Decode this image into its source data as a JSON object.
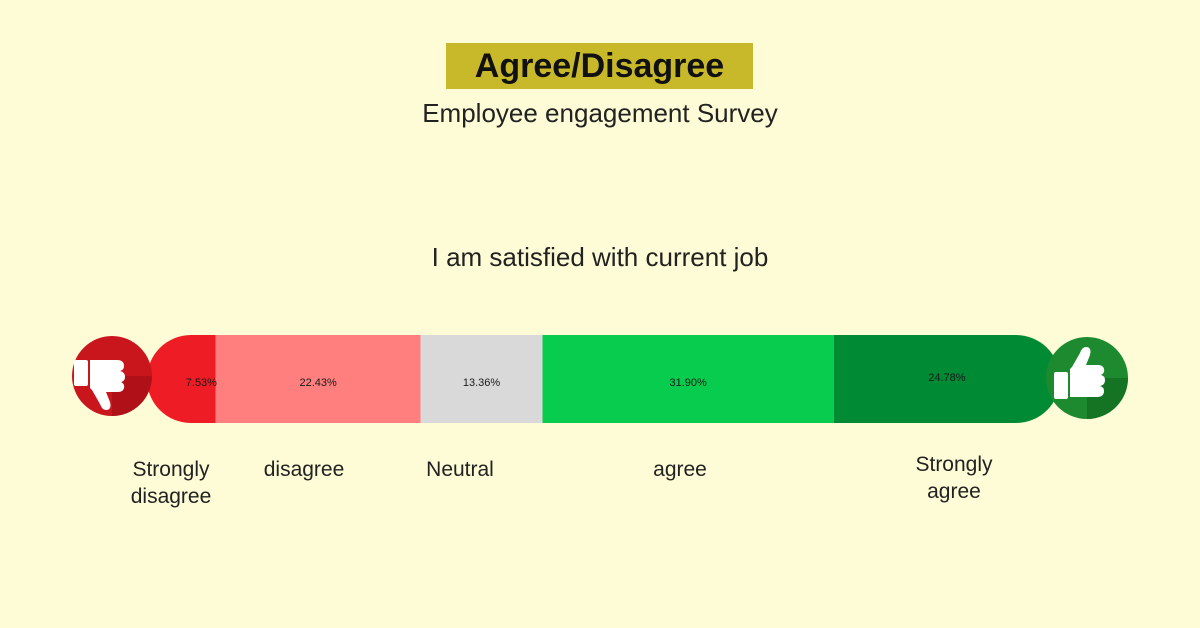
{
  "header": {
    "title": "Agree/Disagree",
    "subtitle": "Employee engagement Survey"
  },
  "chart_data": {
    "type": "bar",
    "orientation": "horizontal-stacked",
    "title": "I am satisfied with current job",
    "categories": [
      "Strongly disagree",
      "disagree",
      "Neutral",
      "agree",
      "Strongly agree"
    ],
    "values": [
      7.53,
      22.43,
      13.36,
      31.9,
      24.78
    ],
    "value_labels": [
      "7.53%",
      "22.43%",
      "13.36%",
      "31.90%",
      "24.78%"
    ],
    "colors": [
      "#EE1C25",
      "#FF7F7F",
      "#D9D9D9",
      "#07CC4D",
      "#008A33"
    ],
    "legend": "none",
    "grid": false
  },
  "icons": {
    "left": "thumbs-down-icon",
    "right": "thumbs-up-icon",
    "left_color": "#C9161D",
    "right_color": "#1E8A2F"
  },
  "labels": {
    "strongly_disagree": [
      "Strongly",
      "disagree"
    ],
    "disagree": [
      "disagree"
    ],
    "neutral": [
      "Neutral"
    ],
    "agree": [
      "agree"
    ],
    "strongly_agree": [
      "Strongly",
      "agree"
    ]
  }
}
